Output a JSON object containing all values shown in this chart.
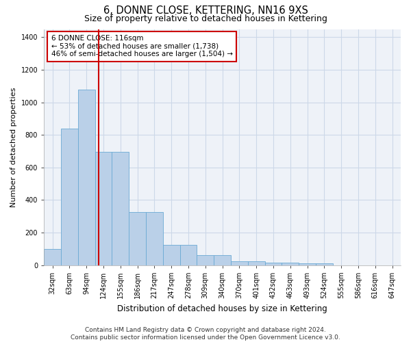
{
  "title": "6, DONNE CLOSE, KETTERING, NN16 9XS",
  "subtitle": "Size of property relative to detached houses in Kettering",
  "xlabel": "Distribution of detached houses by size in Kettering",
  "ylabel": "Number of detached properties",
  "categories": [
    "32sqm",
    "63sqm",
    "94sqm",
    "124sqm",
    "155sqm",
    "186sqm",
    "217sqm",
    "247sqm",
    "278sqm",
    "309sqm",
    "340sqm",
    "370sqm",
    "401sqm",
    "432sqm",
    "463sqm",
    "493sqm",
    "524sqm",
    "555sqm",
    "586sqm",
    "616sqm",
    "647sqm"
  ],
  "values": [
    100,
    840,
    1080,
    695,
    695,
    325,
    325,
    125,
    125,
    60,
    60,
    25,
    25,
    15,
    15,
    10,
    10,
    0,
    0,
    0,
    0
  ],
  "bar_color": "#bad0e8",
  "bar_edge_color": "#6aaad4",
  "grid_color": "#ccd8e8",
  "bg_color": "#eef2f8",
  "vline_color": "#cc0000",
  "vline_x_bin": 2.72,
  "annotation_text": "6 DONNE CLOSE: 116sqm\n← 53% of detached houses are smaller (1,738)\n46% of semi-detached houses are larger (1,504) →",
  "annotation_box_color": "white",
  "annotation_box_edge": "#cc0000",
  "ylim": [
    0,
    1450
  ],
  "yticks": [
    0,
    200,
    400,
    600,
    800,
    1000,
    1200,
    1400
  ],
  "footer": "Contains HM Land Registry data © Crown copyright and database right 2024.\nContains public sector information licensed under the Open Government Licence v3.0.",
  "title_fontsize": 10.5,
  "subtitle_fontsize": 9,
  "xlabel_fontsize": 8.5,
  "ylabel_fontsize": 8,
  "tick_fontsize": 7,
  "footer_fontsize": 6.5,
  "ann_fontsize": 7.5
}
